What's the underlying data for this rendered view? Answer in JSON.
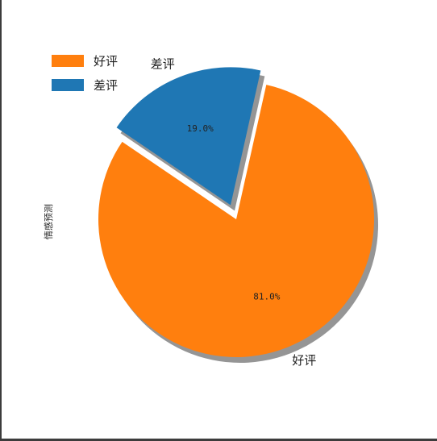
{
  "chart_data": {
    "type": "pie",
    "ylabel": "情感预测",
    "legend": "top-left",
    "slices": [
      {
        "label": "好评",
        "value": 81.0,
        "pct_label": "81.0%",
        "color": "#ff7f0e",
        "explode": false
      },
      {
        "label": "差评",
        "value": 19.0,
        "pct_label": "19.0%",
        "color": "#1f77b4",
        "explode": true
      }
    ],
    "legend_entries": [
      {
        "label": "好评",
        "color": "#ff7f0e"
      },
      {
        "label": "差评",
        "color": "#1f77b4"
      }
    ],
    "shadow": true
  }
}
